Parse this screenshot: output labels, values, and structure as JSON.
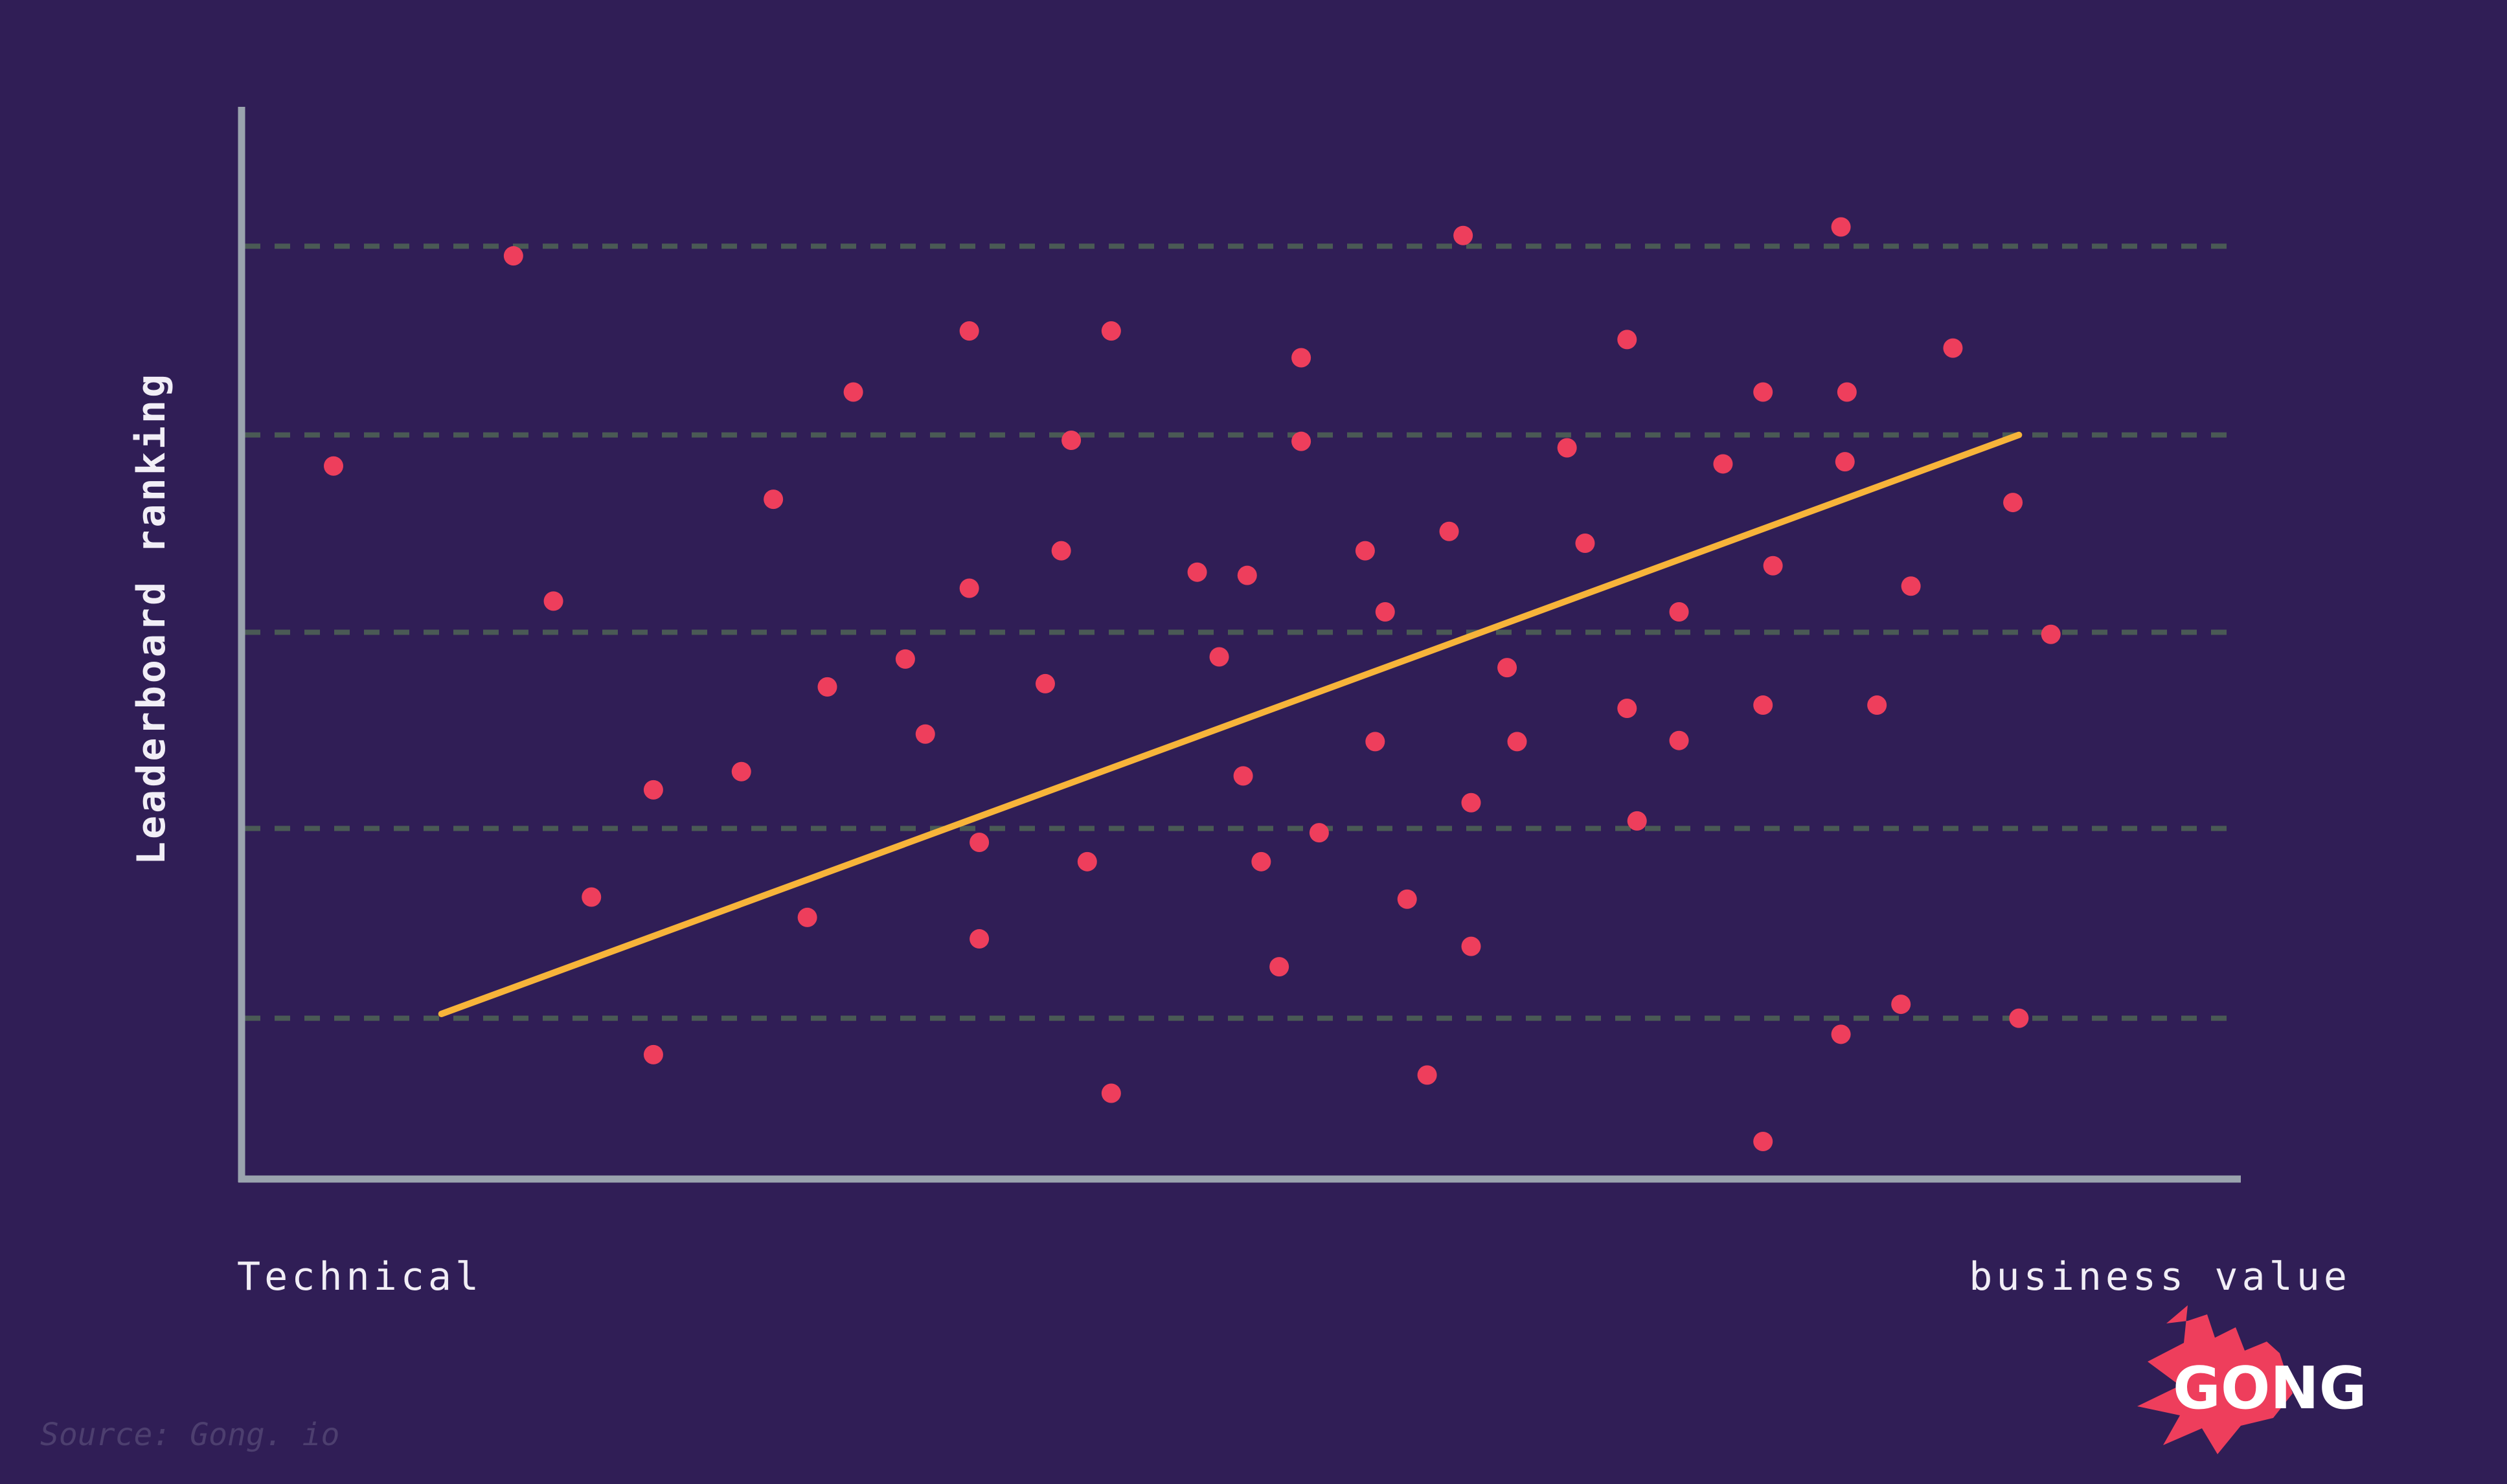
{
  "chart_data": {
    "type": "scatter",
    "title": "",
    "xlabel_left": "Technical",
    "xlabel_right": "business value",
    "ylabel": "Leaderboard ranking",
    "xlim": [
      0,
      100
    ],
    "ylim": [
      0,
      100
    ],
    "grid": "horizontal dashed",
    "gridlines_y": [
      15,
      32.7,
      51,
      69.4,
      87
    ],
    "series": [
      {
        "points": [
          [
            4.6,
            66.5
          ],
          [
            13.6,
            86.1
          ],
          [
            15.6,
            53.9
          ],
          [
            17.5,
            26.3
          ],
          [
            20.6,
            36.3
          ],
          [
            20.6,
            11.6
          ],
          [
            25.0,
            38.0
          ],
          [
            26.6,
            63.4
          ],
          [
            28.3,
            24.4
          ],
          [
            29.3,
            45.9
          ],
          [
            30.6,
            73.4
          ],
          [
            33.2,
            48.5
          ],
          [
            34.2,
            41.5
          ],
          [
            36.4,
            55.1
          ],
          [
            36.4,
            79.1
          ],
          [
            36.9,
            31.4
          ],
          [
            36.9,
            22.4
          ],
          [
            40.2,
            46.2
          ],
          [
            41.0,
            58.6
          ],
          [
            41.5,
            68.9
          ],
          [
            42.3,
            29.6
          ],
          [
            43.5,
            79.1
          ],
          [
            43.5,
            8.0
          ],
          [
            47.8,
            56.6
          ],
          [
            48.9,
            48.7
          ],
          [
            50.1,
            37.6
          ],
          [
            50.3,
            56.3
          ],
          [
            51.0,
            29.6
          ],
          [
            51.9,
            19.8
          ],
          [
            53.0,
            68.8
          ],
          [
            53.0,
            76.6
          ],
          [
            53.9,
            32.3
          ],
          [
            56.2,
            58.6
          ],
          [
            56.7,
            40.8
          ],
          [
            57.2,
            52.9
          ],
          [
            58.3,
            26.1
          ],
          [
            60.4,
            60.4
          ],
          [
            61.1,
            88.0
          ],
          [
            61.5,
            35.1
          ],
          [
            61.5,
            21.7
          ],
          [
            59.3,
            9.7
          ],
          [
            63.3,
            47.7
          ],
          [
            63.8,
            40.8
          ],
          [
            66.3,
            68.2
          ],
          [
            67.2,
            59.3
          ],
          [
            69.3,
            43.9
          ],
          [
            69.3,
            78.3
          ],
          [
            69.8,
            33.4
          ],
          [
            71.9,
            52.9
          ],
          [
            71.9,
            40.9
          ],
          [
            74.1,
            66.7
          ],
          [
            76.1,
            73.4
          ],
          [
            76.6,
            57.2
          ],
          [
            76.1,
            44.2
          ],
          [
            76.1,
            3.5
          ],
          [
            80.0,
            88.8
          ],
          [
            80.3,
            73.4
          ],
          [
            80.2,
            66.9
          ],
          [
            80.0,
            13.5
          ],
          [
            81.8,
            44.2
          ],
          [
            83.0,
            16.3
          ],
          [
            83.5,
            55.3
          ],
          [
            85.6,
            77.5
          ],
          [
            88.6,
            63.1
          ],
          [
            88.9,
            15.0
          ],
          [
            90.5,
            50.8
          ]
        ]
      }
    ],
    "trendline": {
      "x": [
        10,
        88.9
      ],
      "y": [
        15.4,
        69.4
      ]
    },
    "colors": {
      "background": "#301e56",
      "points": "#ee3e5c",
      "trendline": "#f7b43a",
      "axes": "#9aa3ae",
      "grid": "#4a5a55",
      "text": "#f1eef6"
    }
  },
  "source": "Source: Gong. io",
  "logo": {
    "text": "GONG",
    "color": "#ee3e5c"
  }
}
